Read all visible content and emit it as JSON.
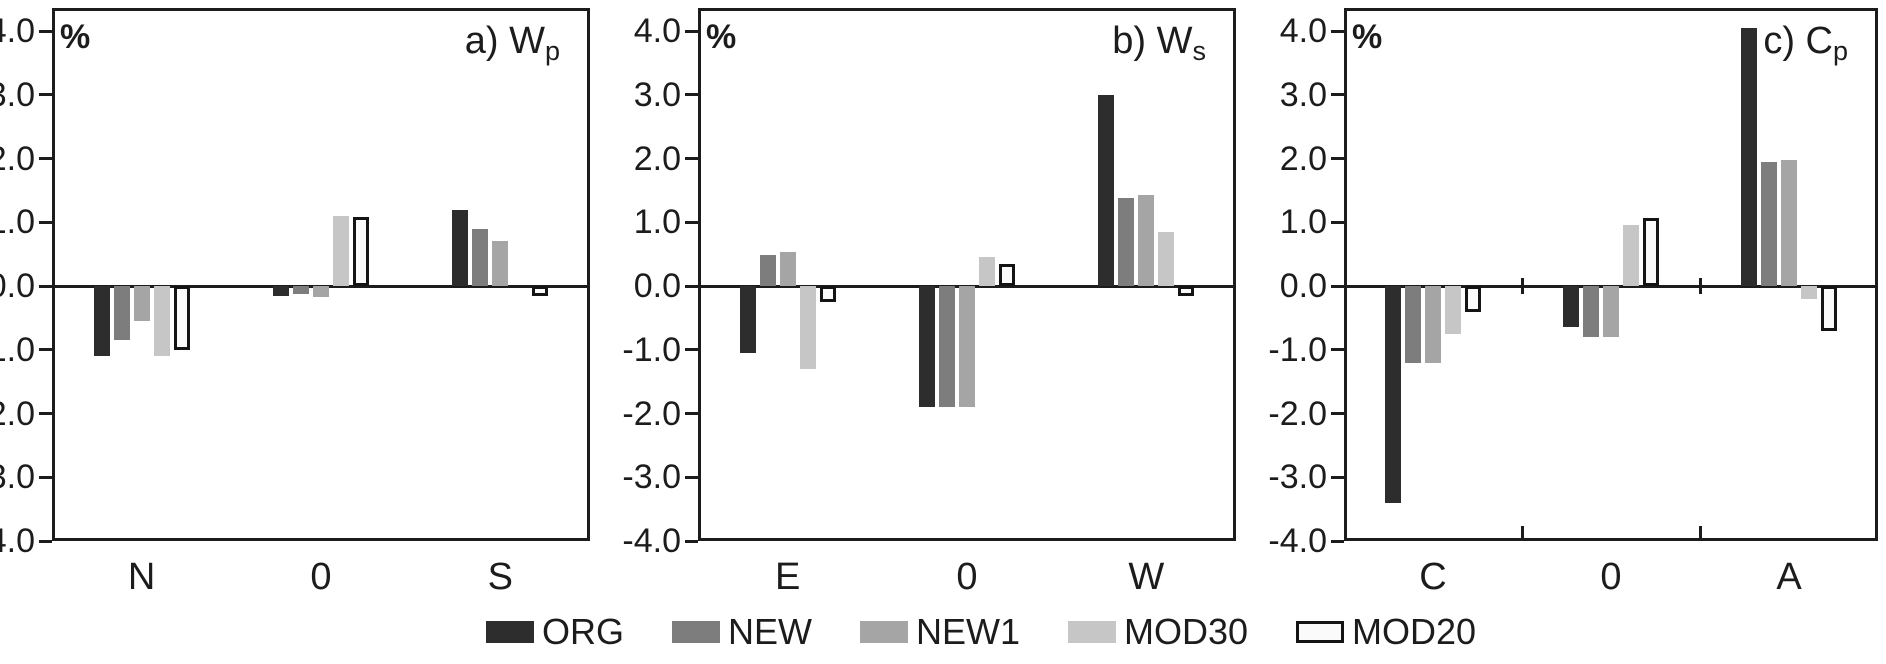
{
  "chart_data": {
    "type": "bar",
    "unit_label": "%",
    "ylim": [
      -4.0,
      4.36
    ],
    "ytick_values": [
      4,
      3,
      2,
      1,
      0,
      -1,
      -2,
      -3,
      -4
    ],
    "ytick_labels": [
      "4.0",
      "3.0",
      "2.0",
      "1.0",
      "0.0",
      "-1.0",
      "-2.0",
      "-3.0",
      "-4.0"
    ],
    "grid": "off",
    "legend_position": "bottom-center",
    "series_names": [
      "ORG",
      "NEW",
      "NEW1",
      "MOD30",
      "MOD20"
    ],
    "series_colors": {
      "ORG": "#2d2d2d",
      "NEW": "#7d7d7d",
      "NEW1": "#a5a5a5",
      "MOD30": "#c6c6c6",
      "MOD20": "#fafafa"
    },
    "mod20_outline_color": "#141414",
    "axis_color": "#1c1c1c",
    "panels": [
      {
        "id": "a",
        "title_main": "a) W",
        "title_sub": "p",
        "categories": [
          "N",
          "0",
          "S"
        ],
        "boundary_ticks": false,
        "series": [
          {
            "name": "ORG",
            "values": [
              -1.1,
              -0.15,
              1.2
            ]
          },
          {
            "name": "NEW",
            "values": [
              -0.85,
              -0.12,
              0.9
            ]
          },
          {
            "name": "NEW1",
            "values": [
              -0.55,
              -0.18,
              0.7
            ]
          },
          {
            "name": "MOD30",
            "values": [
              -1.1,
              1.1,
              0.0
            ]
          },
          {
            "name": "MOD20",
            "values": [
              -1.0,
              1.08,
              -0.15
            ]
          }
        ]
      },
      {
        "id": "b",
        "title_main": "b) W",
        "title_sub": "s",
        "categories": [
          "E",
          "0",
          "W"
        ],
        "boundary_ticks": false,
        "series": [
          {
            "name": "ORG",
            "values": [
              -1.05,
              -1.9,
              3.0
            ]
          },
          {
            "name": "NEW",
            "values": [
              0.48,
              -1.9,
              1.38
            ]
          },
          {
            "name": "NEW1",
            "values": [
              0.53,
              -1.9,
              1.42
            ]
          },
          {
            "name": "MOD30",
            "values": [
              -1.3,
              0.45,
              0.85
            ]
          },
          {
            "name": "MOD20",
            "values": [
              -0.25,
              0.35,
              -0.15
            ]
          }
        ]
      },
      {
        "id": "c",
        "title_main": "c) C",
        "title_sub": "p",
        "categories": [
          "C",
          "0",
          "A"
        ],
        "boundary_ticks": true,
        "series": [
          {
            "name": "ORG",
            "values": [
              -3.4,
              -0.65,
              4.05
            ]
          },
          {
            "name": "NEW",
            "values": [
              -1.2,
              -0.8,
              1.95
            ]
          },
          {
            "name": "NEW1",
            "values": [
              -1.2,
              -0.8,
              1.97
            ]
          },
          {
            "name": "MOD30",
            "values": [
              -0.75,
              0.95,
              -0.2
            ]
          },
          {
            "name": "MOD20",
            "values": [
              -0.4,
              1.07,
              -0.7
            ]
          }
        ]
      }
    ],
    "legend": [
      "ORG",
      "NEW",
      "NEW1",
      "MOD30",
      "MOD20"
    ]
  }
}
